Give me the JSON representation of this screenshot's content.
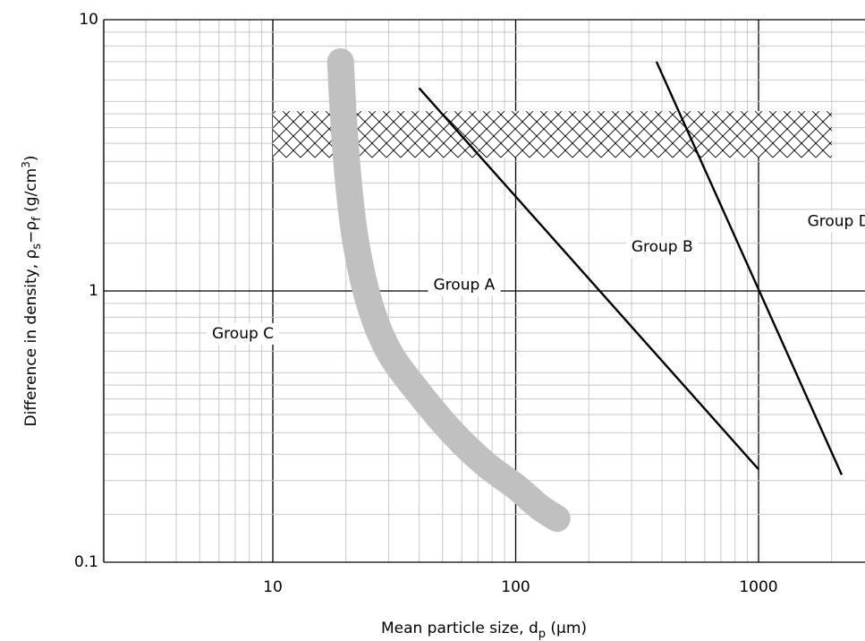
{
  "chart_data": {
    "type": "line",
    "title": "",
    "xlabel": {
      "text": "Mean particle size, d",
      "sub": "p",
      "unit": " (µm)"
    },
    "ylabel": {
      "text": "Difference in density, ρ",
      "sub1": "s",
      "mid": "−ρ",
      "sub2": "f",
      "unit": " (g/cm",
      "sup": "3",
      "close": ")"
    },
    "xscale": "log",
    "yscale": "log",
    "xlim": [
      2,
      3000
    ],
    "ylim": [
      0.1,
      10
    ],
    "grid": true,
    "x_ticks": [
      {
        "value": 10,
        "label": "10"
      },
      {
        "value": 100,
        "label": "100"
      },
      {
        "value": 1000,
        "label": "1000"
      }
    ],
    "y_ticks": [
      {
        "value": 10,
        "label": "10"
      },
      {
        "value": 1,
        "label": "1"
      },
      {
        "value": 0.1,
        "label": "0.1"
      }
    ],
    "series": [
      {
        "kind": "thick-curve",
        "color": "#c0c0c0",
        "points": [
          [
            19,
            7
          ],
          [
            19.5,
            4.5
          ],
          [
            20.5,
            2.5
          ],
          [
            22,
            1.5
          ],
          [
            25,
            0.9
          ],
          [
            30,
            0.6
          ],
          [
            40,
            0.42
          ],
          [
            55,
            0.3
          ],
          [
            75,
            0.23
          ],
          [
            100,
            0.19
          ],
          [
            125,
            0.16
          ],
          [
            148,
            0.145
          ]
        ]
      },
      {
        "kind": "line",
        "color": "#000000",
        "points": [
          [
            40,
            5.6
          ],
          [
            1000,
            0.22
          ]
        ]
      },
      {
        "kind": "line",
        "color": "#000000",
        "points": [
          [
            380,
            7
          ],
          [
            2200,
            0.21
          ]
        ]
      }
    ],
    "hatched_band": {
      "x": [
        10,
        2000
      ],
      "y": [
        3.1,
        4.6
      ]
    },
    "annotations": [
      {
        "text": "Group C",
        "x": 10,
        "y": 0.75
      },
      {
        "text": "Group A",
        "x": 100,
        "y": 1.05
      },
      {
        "text": "Group B",
        "x": 450,
        "y": 1.45
      },
      {
        "text": "Group D",
        "x": 1700,
        "y": 1.8
      }
    ]
  }
}
